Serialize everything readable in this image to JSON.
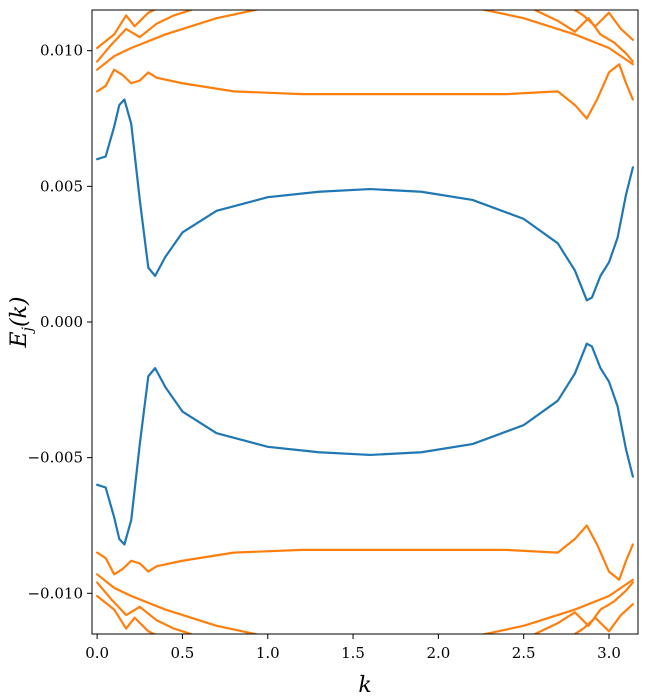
{
  "chart_data": {
    "type": "line",
    "title": "",
    "xlabel": "k",
    "ylabel": "E_j(k)",
    "ylabel_parts": {
      "main": "E",
      "sub": "j",
      "arg": "(k)"
    },
    "xlim": [
      -0.03,
      3.17
    ],
    "ylim": [
      -0.0115,
      0.0115
    ],
    "grid": false,
    "x_ticks": [
      {
        "value": 0.0,
        "label": "0.0"
      },
      {
        "value": 0.5,
        "label": "0.5"
      },
      {
        "value": 1.0,
        "label": "1.0"
      },
      {
        "value": 1.5,
        "label": "1.5"
      },
      {
        "value": 2.0,
        "label": "2.0"
      },
      {
        "value": 2.5,
        "label": "2.5"
      },
      {
        "value": 3.0,
        "label": "3.0"
      }
    ],
    "y_ticks": [
      {
        "value": 0.01,
        "label": "0.010"
      },
      {
        "value": 0.005,
        "label": "0.005"
      },
      {
        "value": 0.0,
        "label": "0.000"
      },
      {
        "value": -0.005,
        "label": "−0.005"
      },
      {
        "value": -0.01,
        "label": "−0.010"
      }
    ],
    "colors": {
      "inner": "#1f77b4",
      "outer": "#ff7f0e"
    },
    "series": [
      {
        "group": "inner",
        "x": [
          0.0,
          0.05,
          0.1,
          0.13,
          0.16,
          0.2,
          0.25,
          0.3,
          0.34,
          0.4,
          0.5,
          0.7,
          1.0,
          1.3,
          1.6,
          1.9,
          2.2,
          2.5,
          2.7,
          2.8,
          2.87,
          2.9,
          2.95,
          3.0,
          3.05,
          3.1,
          3.14
        ],
        "y": [
          0.006,
          0.0061,
          0.0072,
          0.008,
          0.0082,
          0.0073,
          0.0045,
          0.002,
          0.0017,
          0.0024,
          0.0033,
          0.0041,
          0.0046,
          0.0048,
          0.0049,
          0.0048,
          0.0045,
          0.0038,
          0.0029,
          0.0019,
          0.0008,
          0.0009,
          0.0017,
          0.0022,
          0.0031,
          0.0047,
          0.0057
        ]
      },
      {
        "group": "inner",
        "x": [
          0.0,
          0.05,
          0.1,
          0.13,
          0.16,
          0.2,
          0.25,
          0.3,
          0.34,
          0.4,
          0.5,
          0.7,
          1.0,
          1.3,
          1.6,
          1.9,
          2.2,
          2.5,
          2.7,
          2.8,
          2.87,
          2.9,
          2.95,
          3.0,
          3.05,
          3.1,
          3.14
        ],
        "y": [
          -0.006,
          -0.0061,
          -0.0072,
          -0.008,
          -0.0082,
          -0.0073,
          -0.0045,
          -0.002,
          -0.0017,
          -0.0024,
          -0.0033,
          -0.0041,
          -0.0046,
          -0.0048,
          -0.0049,
          -0.0048,
          -0.0045,
          -0.0038,
          -0.0029,
          -0.0019,
          -0.0008,
          -0.0009,
          -0.0017,
          -0.0022,
          -0.0031,
          -0.0047,
          -0.0057
        ]
      },
      {
        "group": "outer",
        "x": [
          0.0,
          0.05,
          0.1,
          0.15,
          0.2,
          0.25,
          0.3,
          0.35,
          0.5,
          0.8,
          1.2,
          1.6,
          2.0,
          2.4,
          2.7,
          2.8,
          2.87,
          2.93,
          3.0,
          3.06,
          3.1,
          3.14
        ],
        "y": [
          0.0085,
          0.0087,
          0.0093,
          0.0091,
          0.0088,
          0.0089,
          0.0092,
          0.009,
          0.0088,
          0.0085,
          0.0084,
          0.0084,
          0.0084,
          0.0084,
          0.0085,
          0.008,
          0.0075,
          0.0082,
          0.0092,
          0.0095,
          0.0088,
          0.0082
        ]
      },
      {
        "group": "outer",
        "x": [
          0.0,
          0.05,
          0.1,
          0.15,
          0.2,
          0.25,
          0.3,
          0.35,
          0.5,
          0.8,
          1.2,
          1.6,
          2.0,
          2.4,
          2.7,
          2.8,
          2.87,
          2.93,
          3.0,
          3.06,
          3.1,
          3.14
        ],
        "y": [
          -0.0085,
          -0.0087,
          -0.0093,
          -0.0091,
          -0.0088,
          -0.0089,
          -0.0092,
          -0.009,
          -0.0088,
          -0.0085,
          -0.0084,
          -0.0084,
          -0.0084,
          -0.0084,
          -0.0085,
          -0.008,
          -0.0075,
          -0.0082,
          -0.0092,
          -0.0095,
          -0.0088,
          -0.0082
        ]
      },
      {
        "group": "outer",
        "x": [
          0.0,
          0.1,
          0.2,
          0.4,
          0.7,
          1.0,
          1.3,
          1.6,
          1.9,
          2.2,
          2.5,
          2.8,
          3.0,
          3.14
        ],
        "y": [
          0.0093,
          0.0098,
          0.0101,
          0.0106,
          0.0112,
          0.0116,
          0.0118,
          0.0119,
          0.0118,
          0.0116,
          0.0112,
          0.0106,
          0.0101,
          0.0095
        ]
      },
      {
        "group": "outer",
        "x": [
          0.0,
          0.1,
          0.2,
          0.4,
          0.7,
          1.0,
          1.3,
          1.6,
          1.9,
          2.2,
          2.5,
          2.8,
          3.0,
          3.14
        ],
        "y": [
          -0.0093,
          -0.0098,
          -0.0101,
          -0.0106,
          -0.0112,
          -0.0116,
          -0.0118,
          -0.0119,
          -0.0118,
          -0.0116,
          -0.0112,
          -0.0106,
          -0.0101,
          -0.0095
        ]
      },
      {
        "group": "outer",
        "x": [
          0.0,
          0.08,
          0.17,
          0.25,
          0.35,
          0.45,
          0.55,
          0.65
        ],
        "y": [
          0.0096,
          0.0102,
          0.0108,
          0.0105,
          0.011,
          0.0113,
          0.0115,
          0.0117
        ]
      },
      {
        "group": "outer",
        "x": [
          0.0,
          0.08,
          0.17,
          0.25,
          0.35,
          0.45,
          0.55,
          0.65
        ],
        "y": [
          -0.0096,
          -0.0102,
          -0.0108,
          -0.0105,
          -0.011,
          -0.0113,
          -0.0115,
          -0.0117
        ]
      },
      {
        "group": "outer",
        "x": [
          0.0,
          0.1,
          0.17,
          0.22,
          0.3,
          0.4
        ],
        "y": [
          0.0101,
          0.0106,
          0.0113,
          0.0109,
          0.0114,
          0.0117
        ]
      },
      {
        "group": "outer",
        "x": [
          0.0,
          0.1,
          0.17,
          0.22,
          0.3,
          0.4
        ],
        "y": [
          -0.0101,
          -0.0106,
          -0.0113,
          -0.0109,
          -0.0114,
          -0.0117
        ]
      },
      {
        "group": "outer",
        "x": [
          2.5,
          2.6,
          2.7,
          2.8,
          2.88,
          2.95,
          3.03,
          3.1,
          3.14
        ],
        "y": [
          0.0117,
          0.0114,
          0.0111,
          0.0107,
          0.0112,
          0.0106,
          0.0103,
          0.0099,
          0.0096
        ]
      },
      {
        "group": "outer",
        "x": [
          2.5,
          2.6,
          2.7,
          2.8,
          2.88,
          2.95,
          3.03,
          3.1,
          3.14
        ],
        "y": [
          -0.0117,
          -0.0114,
          -0.0111,
          -0.0107,
          -0.0112,
          -0.0106,
          -0.0103,
          -0.0099,
          -0.0096
        ]
      },
      {
        "group": "outer",
        "x": [
          2.75,
          2.85,
          2.92,
          3.0,
          3.07,
          3.14
        ],
        "y": [
          0.0117,
          0.0113,
          0.0109,
          0.0114,
          0.0108,
          0.0104
        ]
      },
      {
        "group": "outer",
        "x": [
          2.75,
          2.85,
          2.92,
          3.0,
          3.07,
          3.14
        ],
        "y": [
          -0.0117,
          -0.0113,
          -0.0109,
          -0.0114,
          -0.0108,
          -0.0104
        ]
      }
    ]
  }
}
